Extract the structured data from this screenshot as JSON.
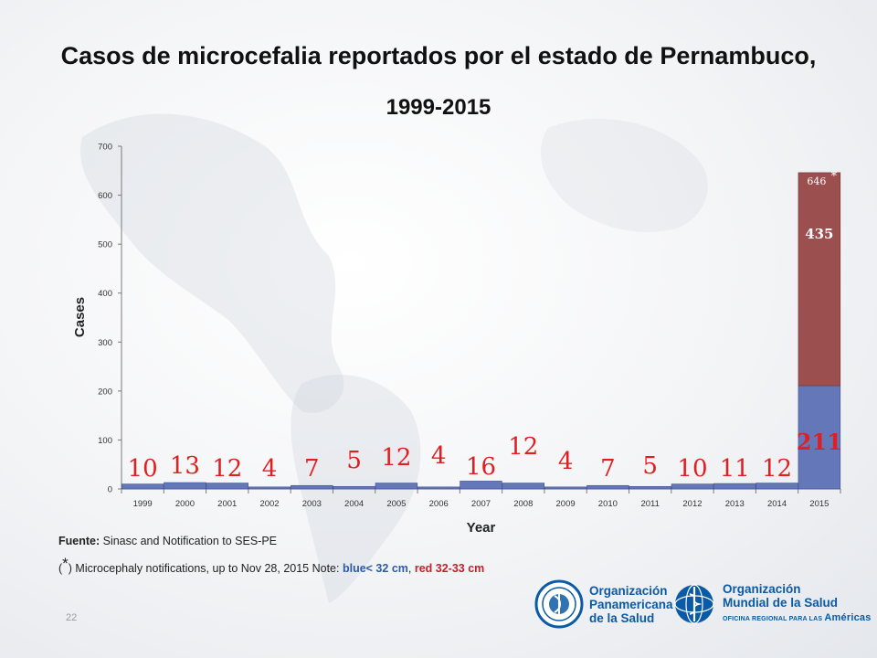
{
  "title": {
    "line1": "Casos de microcefalia reportados por el estado de Pernambuco,",
    "line2": "1999-2015"
  },
  "chart_data": {
    "type": "bar",
    "title": "Casos de microcefalia reportados por el estado de Pernambuco, 1999-2015",
    "xlabel": "Year",
    "ylabel": "Cases",
    "ylim": [
      0,
      700
    ],
    "yticks": [
      0,
      100,
      200,
      300,
      400,
      500,
      600,
      700
    ],
    "categories": [
      "1999",
      "2000",
      "2001",
      "2002",
      "2003",
      "2004",
      "2005",
      "2006",
      "2007",
      "2008",
      "2009",
      "2010",
      "2011",
      "2012",
      "2013",
      "2014",
      "2015"
    ],
    "series": [
      {
        "color": "#6477b9",
        "values": [
          10,
          13,
          12,
          4,
          7,
          5,
          12,
          4,
          16,
          12,
          4,
          7,
          5,
          10,
          11,
          12,
          211
        ]
      },
      {
        "color": "#9b4f4f",
        "values": [
          0,
          0,
          0,
          0,
          0,
          0,
          0,
          0,
          0,
          0,
          0,
          0,
          0,
          0,
          0,
          0,
          435
        ]
      }
    ],
    "data_labels": [
      "10",
      "13",
      "12",
      "4",
      "7",
      "5",
      "12",
      "4",
      "16",
      "12",
      "4",
      "7",
      "5",
      "10",
      "11",
      "12",
      "211"
    ],
    "data_label_color": "#e02020",
    "stack_label": "435",
    "total_label": "646",
    "total_marker": "*",
    "grid": false,
    "legend": "none"
  },
  "footer": {
    "source_label": "Fuente:",
    "source_text": " Sinasc and Notification to SES-PE",
    "note_open": "(",
    "note_mark": "*",
    "note_text": ") Microcephaly notifications, up to Nov 28, 2015 Note: ",
    "blue_text": "blue< 32 cm",
    "sep": ", ",
    "red_text": "red 32-33 cm"
  },
  "slide_number": "22",
  "logos": {
    "paho": {
      "line1": "Organización",
      "line2": "Panamericana",
      "line3": "de la Salud"
    },
    "who": {
      "line1": "Organización",
      "line2": "Mundial de la Salud",
      "sub": "OFICINA REGIONAL PARA LAS",
      "sub2": "Américas"
    }
  },
  "colors": {
    "blue_bar": "#6477b9",
    "red_bar": "#9b4f4f",
    "label_red": "#e02020",
    "logo_blue": "#0a5aa6"
  }
}
